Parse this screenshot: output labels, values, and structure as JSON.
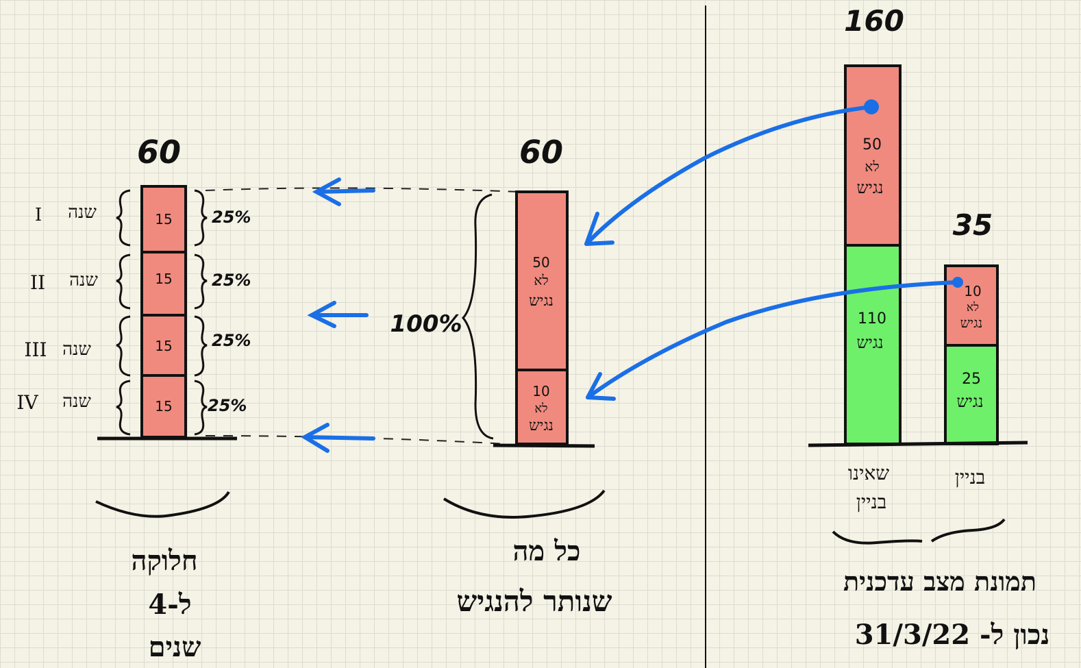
{
  "colors": {
    "red": "#f08a7e",
    "green": "#6ef06a",
    "ink": "#111111",
    "arrow": "#1a6fe6",
    "background": "#f5f2e6"
  },
  "left_column": {
    "total": "60",
    "segments": [
      {
        "value": "15",
        "year": "שנה",
        "numeral": "I",
        "pct": "25%"
      },
      {
        "value": "15",
        "year": "שנה",
        "numeral": "II",
        "pct": "25%"
      },
      {
        "value": "15",
        "year": "שנה",
        "numeral": "III",
        "pct": "25%"
      },
      {
        "value": "15",
        "year": "שנה",
        "numeral": "IV",
        "pct": "25%"
      }
    ],
    "caption_lines": [
      "חלוקה",
      "ל-4",
      "שנים"
    ]
  },
  "middle_column": {
    "total": "60",
    "pct": "100%",
    "top_segment": {
      "value": "50",
      "label_1": "לא",
      "label_2": "נגיש"
    },
    "bottom_segment": {
      "value": "10",
      "label_1": "לא",
      "label_2": "נגיש"
    },
    "caption_lines": [
      "כל מה",
      "שנותר להנגיש"
    ]
  },
  "right_chart": {
    "bars": [
      {
        "category": "שאינו בניין",
        "category_lines": [
          "שאינו",
          "בניין"
        ],
        "total": "160",
        "segments": [
          {
            "value": "50",
            "label_1": "לא",
            "label_2": "נגיש",
            "color": "#f08a7e"
          },
          {
            "value": "110",
            "label_1": "",
            "label_2": "נגיש",
            "color": "#6ef06a"
          }
        ]
      },
      {
        "category": "בניין",
        "category_lines": [
          "בניין"
        ],
        "total": "35",
        "segments": [
          {
            "value": "10",
            "label_1": "לא",
            "label_2": "נגיש",
            "color": "#f08a7e"
          },
          {
            "value": "25",
            "label_1": "",
            "label_2": "נגיש",
            "color": "#6ef06a"
          }
        ]
      }
    ],
    "caption_lines": [
      "תמונת מצב עדכנית",
      "נכון ל- 31/3/22"
    ]
  }
}
